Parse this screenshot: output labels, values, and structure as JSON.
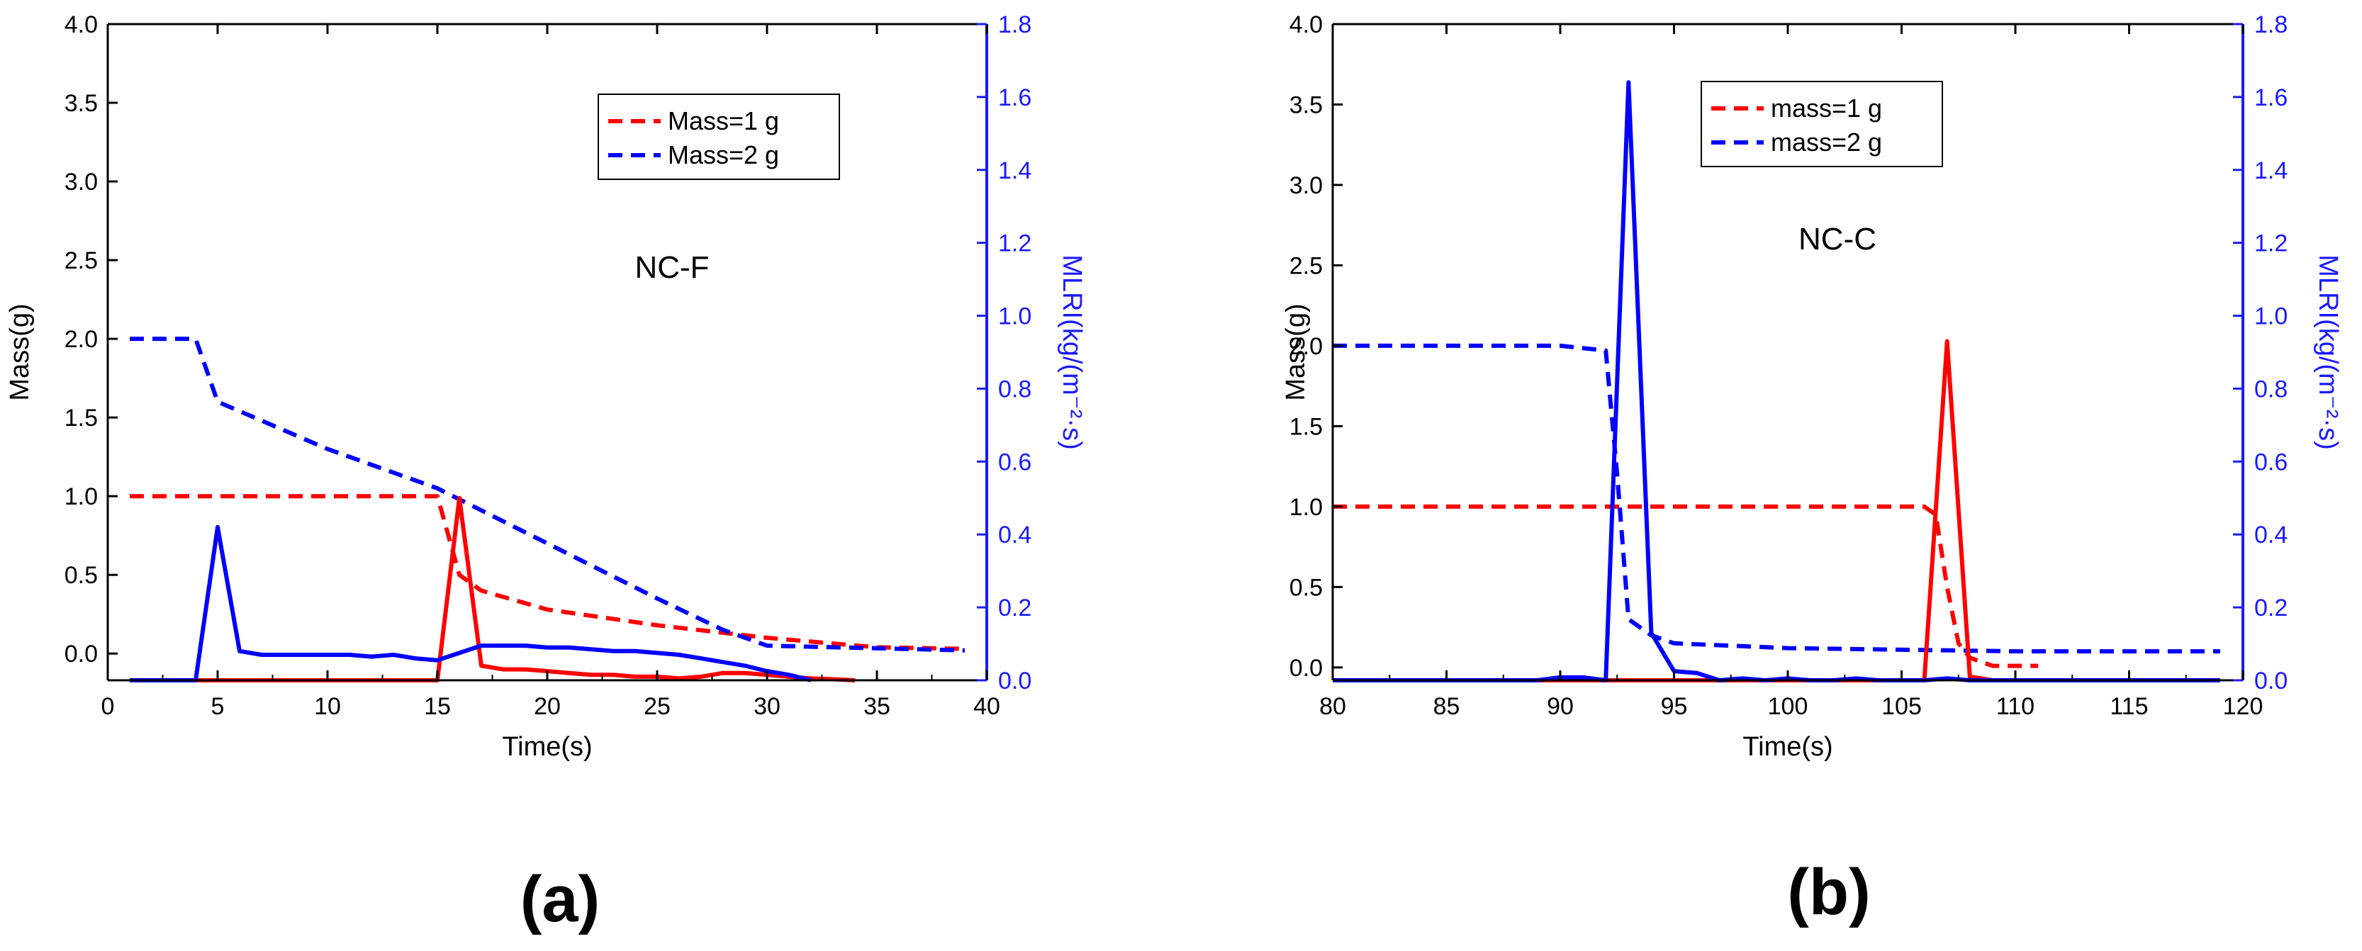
{
  "colors": {
    "mass_1g": "#ff0000",
    "mass_2g": "#0000ff",
    "right_axis": "#1a1aff"
  },
  "chart_data": [
    {
      "type": "line",
      "panel_label": "(a)",
      "annotation": "NC-F",
      "xlabel": "Time(s)",
      "ylabel": "Mass(g)",
      "y2label": "MLRI(kg/(m⁻²·s)",
      "xlim": [
        0,
        40
      ],
      "ylim": [
        -0.17,
        4.0
      ],
      "y2lim": [
        0,
        1.8
      ],
      "xticks": [
        "0",
        "5",
        "10",
        "15",
        "20",
        "25",
        "30",
        "35",
        "40"
      ],
      "yticks": [
        "0.0",
        "0.5",
        "1.0",
        "1.5",
        "2.0",
        "2.5",
        "3.0",
        "3.5",
        "4.0"
      ],
      "y2ticks": [
        "0.0",
        "0.2",
        "0.4",
        "0.6",
        "0.8",
        "1.0",
        "1.2",
        "1.4",
        "1.6",
        "1.8"
      ],
      "legend": {
        "position": "top-right",
        "entries": [
          "Mass=1 g",
          "Mass=2 g"
        ]
      },
      "series": [
        {
          "name": "Mass=1 g",
          "axis": "left",
          "style": "dashed",
          "color": "#ff0000",
          "x": [
            1,
            15,
            16,
            17,
            20,
            25,
            30,
            35,
            39
          ],
          "y": [
            1.0,
            1.0,
            0.5,
            0.4,
            0.28,
            0.18,
            0.1,
            0.04,
            0.03
          ]
        },
        {
          "name": "Mass=2 g",
          "axis": "left",
          "style": "dashed",
          "color": "#0000ff",
          "x": [
            1,
            4,
            5,
            10,
            15,
            20,
            25,
            28,
            30,
            39
          ],
          "y": [
            2.0,
            2.0,
            1.6,
            1.3,
            1.05,
            0.7,
            0.35,
            0.15,
            0.05,
            0.02
          ]
        },
        {
          "name": "MLRI, Mass=1 g",
          "axis": "right",
          "style": "solid",
          "color": "#ff0000",
          "x": [
            1,
            15,
            16,
            17,
            18,
            19,
            20,
            21,
            22,
            23,
            24,
            25,
            26,
            27,
            28,
            29,
            30,
            31,
            32,
            33,
            34
          ],
          "y": [
            0,
            0,
            0.5,
            0.04,
            0.03,
            0.03,
            0.025,
            0.02,
            0.015,
            0.015,
            0.01,
            0.01,
            0.005,
            0.01,
            0.02,
            0.02,
            0.015,
            0.01,
            0.005,
            0.003,
            0
          ]
        },
        {
          "name": "MLRI, Mass=2 g",
          "axis": "right",
          "style": "solid",
          "color": "#0000ff",
          "x": [
            1,
            4,
            5,
            6,
            7,
            10,
            11,
            12,
            13,
            14,
            15,
            16,
            17,
            18,
            19,
            20,
            21,
            22,
            23,
            24,
            25,
            26,
            27,
            28,
            29,
            30,
            31,
            32
          ],
          "y": [
            0,
            0,
            0.42,
            0.08,
            0.07,
            0.07,
            0.07,
            0.065,
            0.07,
            0.06,
            0.055,
            0.075,
            0.095,
            0.095,
            0.095,
            0.09,
            0.09,
            0.085,
            0.08,
            0.08,
            0.075,
            0.07,
            0.06,
            0.05,
            0.04,
            0.025,
            0.015,
            0
          ]
        }
      ]
    },
    {
      "type": "line",
      "panel_label": "(b)",
      "annotation": "NC-C",
      "xlabel": "Time(s)",
      "ylabel": "Mass(g)",
      "y2label": "MLRI(kg/(m⁻²·s)",
      "xlim": [
        80,
        120
      ],
      "ylim": [
        -0.08,
        4.0
      ],
      "y2lim": [
        0,
        1.8
      ],
      "xticks": [
        "80",
        "85",
        "90",
        "95",
        "100",
        "105",
        "110",
        "115",
        "120"
      ],
      "yticks": [
        "0.0",
        "0.5",
        "1.0",
        "1.5",
        "2.0",
        "2.5",
        "3.0",
        "3.5",
        "4.0"
      ],
      "y2ticks": [
        "0.0",
        "0.2",
        "0.4",
        "0.6",
        "0.8",
        "1.0",
        "1.2",
        "1.4",
        "1.6",
        "1.8"
      ],
      "legend": {
        "position": "top-right",
        "entries": [
          "mass=1 g",
          "mass=2 g"
        ]
      },
      "series": [
        {
          "name": "mass=1 g",
          "axis": "left",
          "style": "dashed",
          "color": "#ff0000",
          "x": [
            80,
            106,
            106.5,
            107,
            107.5,
            108,
            109,
            111
          ],
          "y": [
            1.0,
            1.0,
            0.95,
            0.5,
            0.15,
            0.06,
            0.01,
            0.01
          ]
        },
        {
          "name": "mass=2 g",
          "axis": "left",
          "style": "dashed",
          "color": "#0000ff",
          "x": [
            80,
            90,
            92,
            92.5,
            93,
            94,
            95,
            100,
            110,
            119
          ],
          "y": [
            2.0,
            2.0,
            1.97,
            1.2,
            0.3,
            0.2,
            0.15,
            0.12,
            0.1,
            0.1
          ]
        },
        {
          "name": "MLRI, mass=1 g",
          "axis": "right",
          "style": "solid",
          "color": "#ff0000",
          "x": [
            80,
            106,
            107,
            108,
            109,
            111
          ],
          "y": [
            0,
            0,
            0.93,
            0.01,
            0,
            0
          ]
        },
        {
          "name": "MLRI, mass=2 g",
          "axis": "right",
          "style": "solid",
          "color": "#0000ff",
          "x": [
            80,
            89,
            90,
            91,
            92,
            93,
            94,
            95,
            96,
            97,
            98,
            99,
            100,
            101,
            102,
            103,
            104,
            105,
            106,
            107,
            108,
            109,
            110,
            119
          ],
          "y": [
            0,
            0,
            0.008,
            0.008,
            0,
            1.64,
            0.13,
            0.025,
            0.02,
            0,
            0.005,
            0,
            0.005,
            0,
            0,
            0.005,
            0,
            0,
            0,
            0.005,
            0,
            0,
            0,
            0
          ]
        }
      ]
    }
  ]
}
